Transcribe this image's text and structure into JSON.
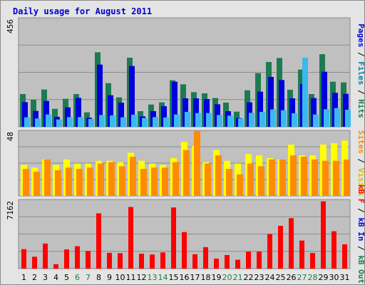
{
  "title": "Daily usage for August 2011",
  "colors": {
    "pages": "#0000dd",
    "files": "#0080a0",
    "hits": "#1e7a52",
    "hits_light": "#3cb8f0",
    "visits": "#ffff00",
    "sites": "#ff8c00",
    "kbf": "#ff0000",
    "weekend": "#1e7a52"
  },
  "right_labels": {
    "top": [
      {
        "text": "Pages",
        "color": "#0000dd"
      },
      {
        "text": " / ",
        "color": "#000000"
      },
      {
        "text": "Files",
        "color": "#0080a0"
      },
      {
        "text": " / ",
        "color": "#000000"
      },
      {
        "text": "Hits",
        "color": "#1e7a52"
      }
    ],
    "mid": [
      {
        "text": "Sites",
        "color": "#ff8c00"
      },
      {
        "text": " / ",
        "color": "#000000"
      },
      {
        "text": "Visits",
        "color": "#ddbb00"
      }
    ],
    "bottom": [
      {
        "text": "kB F",
        "color": "#ff0000"
      },
      {
        "text": " / ",
        "color": "#000000"
      },
      {
        "text": "kB In",
        "color": "#0000dd"
      },
      {
        "text": " / ",
        "color": "#000000"
      },
      {
        "text": "kB Out",
        "color": "#1e7a52"
      }
    ]
  },
  "chart_data": {
    "type": "bar",
    "title": "Daily usage for August 2011",
    "categories": [
      "1",
      "2",
      "3",
      "4",
      "5",
      "6",
      "7",
      "8",
      "9",
      "10",
      "11",
      "12",
      "13",
      "14",
      "15",
      "16",
      "17",
      "18",
      "19",
      "20",
      "21",
      "22",
      "23",
      "24",
      "25",
      "26",
      "27",
      "28",
      "29",
      "30",
      "31"
    ],
    "weekend_days": [
      "6",
      "7",
      "13",
      "14",
      "20",
      "21",
      "27",
      "28"
    ],
    "panels": [
      {
        "name": "hits-files-pages",
        "ymax_label": "456",
        "ylim": [
          0,
          456
        ],
        "series": [
          {
            "name": "Hits",
            "values": [
              138,
              114,
              157,
              76,
              118,
              138,
              61,
              314,
              184,
              124,
              291,
              66,
              94,
              103,
              196,
              179,
              146,
              141,
              121,
              102,
              64,
              154,
              226,
              273,
              290,
              156,
              241,
              138,
              306,
              190,
              187
            ]
          },
          {
            "name": "Files",
            "values": [
              104,
              67,
              109,
              42,
              82,
              122,
              38,
              262,
              133,
              102,
              256,
              44,
              66,
              87,
              190,
              120,
              120,
              117,
              95,
              66,
              37,
              103,
              148,
              210,
              197,
              120,
              180,
              121,
              232,
              143,
              139
            ]
          },
          {
            "name": "Pages",
            "values": [
              40,
              35,
              52,
              31,
              41,
              41,
              33,
              50,
              48,
              40,
              51,
              37,
              41,
              39,
              52,
              63,
              58,
              58,
              50,
              47,
              35,
              59,
              63,
              73,
              70,
              57,
              291,
              52,
              74,
              79,
              72
            ]
          }
        ]
      },
      {
        "name": "visits-sites",
        "ymax_label": "48",
        "ylim": [
          0,
          48
        ],
        "series": [
          {
            "name": "Visits",
            "values": [
              23,
              21,
              27,
              23,
              27,
              24,
              24,
              26,
              26,
              25,
              32,
              26,
              24,
              23,
              28,
              40,
              37,
              25,
              34,
              26,
              24,
              31,
              30,
              28,
              27,
              38,
              30,
              30,
              38,
              39,
              41
            ]
          },
          {
            "name": "Sites",
            "values": [
              20,
              18,
              27,
              19,
              21,
              20,
              21,
              24,
              25,
              22,
              29,
              20,
              21,
              21,
              25,
              34,
              48,
              24,
              30,
              20,
              16,
              24,
              22,
              27,
              27,
              30,
              29,
              27,
              26,
              26,
              27
            ]
          }
        ]
      },
      {
        "name": "kbf",
        "ymax_label": "7162",
        "ylim": [
          0,
          7162
        ],
        "series": [
          {
            "name": "kB F",
            "values": [
              2060,
              1260,
              2650,
              470,
              2030,
              2370,
              1870,
              5850,
              1670,
              1630,
              6520,
              1580,
              1490,
              1710,
              6470,
              3870,
              1520,
              2270,
              1060,
              1440,
              940,
              1800,
              1800,
              3660,
              4530,
              5340,
              2970,
              1650,
              7120,
              3950,
              2570
            ]
          }
        ]
      }
    ]
  }
}
